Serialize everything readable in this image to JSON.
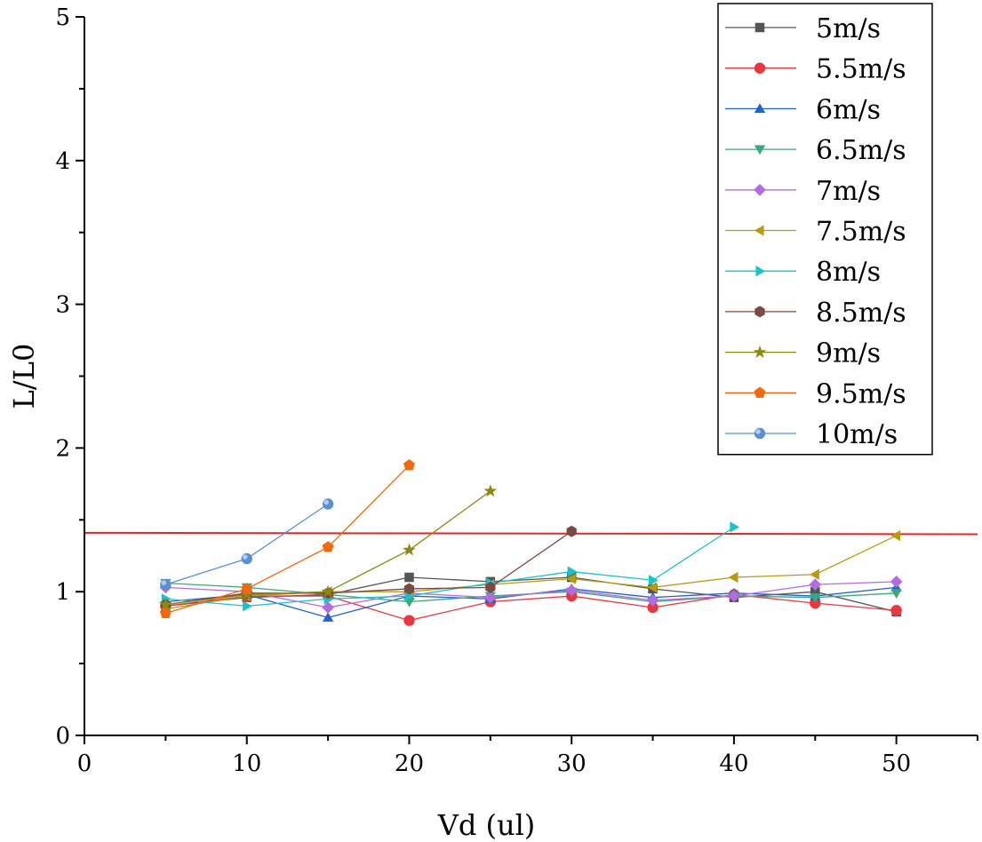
{
  "chart_data": {
    "type": "line",
    "xlabel": "Vd (ul)",
    "ylabel": "L/L0",
    "xlim": [
      0,
      55
    ],
    "ylim": [
      0,
      5
    ],
    "xticks": [
      "0",
      "10",
      "20",
      "30",
      "40",
      "50"
    ],
    "xtick_values": [
      0,
      10,
      20,
      30,
      40,
      50
    ],
    "yticks": [
      "0",
      "1",
      "2",
      "3",
      "4",
      "5"
    ],
    "ytick_values": [
      0,
      1,
      2,
      3,
      4,
      5
    ],
    "legend_position": "top-right",
    "reference_line": {
      "y_start": 1.41,
      "y_end": 1.4,
      "x_start": 0,
      "x_end": 55,
      "color": "#e8262a"
    },
    "series": [
      {
        "name": "5m/s",
        "color": "#555555",
        "marker": "square",
        "x": [
          5,
          10,
          15,
          20,
          25,
          30,
          35,
          40,
          45,
          50
        ],
        "y": [
          0.9,
          0.96,
          0.98,
          1.1,
          1.07,
          1.1,
          1.02,
          0.96,
          1.0,
          0.86
        ]
      },
      {
        "name": "5.5m/s",
        "color": "#e8383d",
        "marker": "circle",
        "x": [
          5,
          10,
          15,
          20,
          25,
          30,
          35,
          40,
          45,
          50
        ],
        "y": [
          0.9,
          0.97,
          0.97,
          0.8,
          0.93,
          0.97,
          0.89,
          0.98,
          0.92,
          0.87
        ]
      },
      {
        "name": "6m/s",
        "color": "#2562c9",
        "marker": "triangle-up",
        "x": [
          5,
          10,
          15,
          20,
          25,
          30,
          35,
          40,
          45,
          50
        ],
        "y": [
          0.93,
          0.98,
          0.82,
          0.97,
          0.95,
          1.02,
          0.96,
          0.99,
          0.97,
          1.03
        ]
      },
      {
        "name": "6.5m/s",
        "color": "#3ba87a",
        "marker": "triangle-down",
        "x": [
          5,
          10,
          15,
          20,
          25,
          30,
          35,
          40,
          45,
          50
        ],
        "y": [
          1.06,
          1.03,
          0.98,
          0.93,
          0.97,
          1.0,
          0.93,
          0.97,
          0.96,
          0.99
        ]
      },
      {
        "name": "7m/s",
        "color": "#b36be0",
        "marker": "diamond",
        "x": [
          5,
          10,
          15,
          20,
          25,
          30,
          35,
          40,
          45,
          50
        ],
        "y": [
          1.03,
          1.0,
          0.89,
          0.99,
          0.96,
          1.01,
          0.94,
          0.97,
          1.05,
          1.07
        ]
      },
      {
        "name": "7.5m/s",
        "color": "#b89a10",
        "marker": "triangle-left",
        "x": [
          5,
          10,
          15,
          20,
          25,
          30,
          35,
          40,
          45,
          50
        ],
        "y": [
          0.88,
          0.97,
          1.0,
          1.0,
          1.05,
          1.09,
          1.03,
          1.1,
          1.12,
          1.39
        ]
      },
      {
        "name": "8m/s",
        "color": "#19c3c7",
        "marker": "triangle-right",
        "x": [
          5,
          10,
          15,
          20,
          25,
          30,
          35,
          40
        ],
        "y": [
          0.95,
          0.9,
          0.95,
          0.97,
          1.06,
          1.14,
          1.08,
          1.45
        ]
      },
      {
        "name": "8.5m/s",
        "color": "#7a4a45",
        "marker": "hexagon",
        "x": [
          5,
          10,
          15,
          20,
          25,
          30
        ],
        "y": [
          0.91,
          0.99,
          0.99,
          1.02,
          1.03,
          1.42
        ]
      },
      {
        "name": "9m/s",
        "color": "#8a8a10",
        "marker": "star",
        "x": [
          5,
          10,
          15,
          20,
          25
        ],
        "y": [
          0.91,
          0.98,
          1.0,
          1.29,
          1.7
        ]
      },
      {
        "name": "9.5m/s",
        "color": "#f0690f",
        "marker": "pentagon",
        "x": [
          5,
          10,
          15,
          20
        ],
        "y": [
          0.85,
          1.02,
          1.31,
          1.88
        ]
      },
      {
        "name": "10m/s",
        "color": "#5a8fd0",
        "marker": "sphere",
        "x": [
          5,
          10,
          15
        ],
        "y": [
          1.05,
          1.23,
          1.61
        ]
      }
    ]
  }
}
